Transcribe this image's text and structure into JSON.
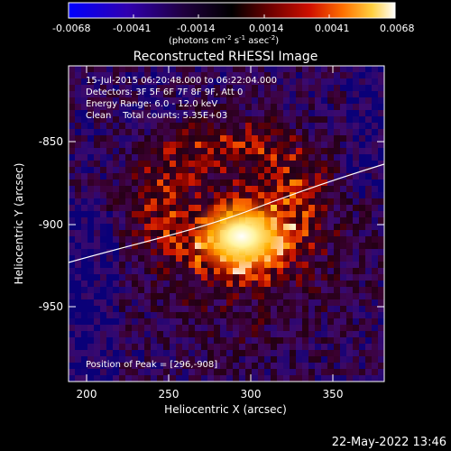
{
  "colorbar": {
    "ticks": [
      "-0.0068",
      "-0.0041",
      "-0.0014",
      "0.0014",
      "0.0041",
      "0.0068"
    ],
    "units_prefix": "(photons cm",
    "units_sup1": "-2",
    "units_mid": " s",
    "units_sup2": "-1",
    "units_mid2": " asec",
    "units_sup3": "-2",
    "units_suffix": ")",
    "gradient_colors": [
      "#0000ff",
      "#3a00a8",
      "#2a0048",
      "#000000",
      "#5a0000",
      "#b00000",
      "#e03000",
      "#ff8000",
      "#ffd000",
      "#ffffff"
    ]
  },
  "title": "Reconstructed RHESSI Image",
  "info": {
    "line1": "15-Jul-2015 06:20:48.000 to 06:22:04.000",
    "line2": "Detectors: 3F 5F 6F 7F 8F 9F, Att 0",
    "line3": "Energy Range: 6.0 - 12.0 keV",
    "line4": "Clean    Total counts: 5.35E+03"
  },
  "peak_label": "Position of Peak = [296,-908]",
  "x_axis": {
    "label": "Heliocentric X (arcsec)",
    "ticks": [
      "200",
      "250",
      "300",
      "350"
    ],
    "range": [
      190,
      383
    ]
  },
  "y_axis": {
    "label": "Heliocentric Y (arcsec)",
    "ticks": [
      "-850",
      "-900",
      "-950"
    ],
    "range": [
      -1006,
      -814
    ]
  },
  "peak": {
    "x": 296,
    "y": -908
  },
  "timestamp": "22-May-2022 13:46"
}
